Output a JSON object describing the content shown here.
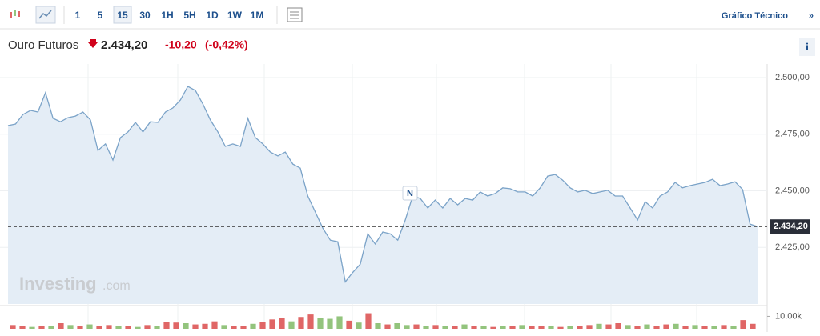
{
  "toolbar": {
    "intervals": [
      "1",
      "5",
      "15",
      "30",
      "1H",
      "5H",
      "1D",
      "1W",
      "1M"
    ],
    "link": "Gráfico Técnico",
    "link_arrow": "»"
  },
  "header": {
    "name": "Ouro Futuros",
    "price": "2.434,20",
    "change": "-10,20",
    "change_pct": "(-0,42%)",
    "info": "i"
  },
  "chart_data": {
    "type": "area",
    "title": "Ouro Futuros",
    "values": [
      2478.8,
      2479.5,
      2483.7,
      2485.5,
      2484.8,
      2493.3,
      2482,
      2480.5,
      2482.3,
      2483,
      2484.8,
      2481.3,
      2467.8,
      2470.7,
      2463.6,
      2473.5,
      2476,
      2480.2,
      2476,
      2480.5,
      2480.2,
      2484.8,
      2486.6,
      2490.1,
      2496.1,
      2494.3,
      2488.3,
      2481.3,
      2476,
      2469.6,
      2470.7,
      2469.6,
      2482,
      2473.5,
      2470.7,
      2467.1,
      2465.4,
      2467.1,
      2461.8,
      2460,
      2447.7,
      2440.6,
      2433.5,
      2428.2,
      2427.5,
      2409.8,
      2414,
      2417.6,
      2431,
      2426.5,
      2431.8,
      2431,
      2428.2,
      2437.1,
      2447.7,
      2446.6,
      2442.4,
      2445.9,
      2442.4,
      2446.6,
      2443.8,
      2446.6,
      2445.9,
      2449.5,
      2447.7,
      2448.8,
      2451.3,
      2450.9,
      2449.5,
      2449.5,
      2447.7,
      2451.3,
      2456.5,
      2457.2,
      2454.7,
      2451.3,
      2449.5,
      2450.2,
      2448.8,
      2449.5,
      2450.2,
      2447.7,
      2447.7,
      2442.4,
      2437.1,
      2445.2,
      2442.4,
      2447.7,
      2449.5,
      2453.7,
      2451.3,
      2452.3,
      2453,
      2453.7,
      2455.1,
      2452.3,
      2453,
      2454,
      2450.6,
      2435.3,
      2434.2
    ],
    "color": "#7ba3c8",
    "fill": "#e4edf6",
    "ylim": [
      2400,
      2506
    ],
    "yticks": [
      {
        "value": 2425,
        "label": "2.425,00"
      },
      {
        "value": 2450,
        "label": "2.450,00"
      },
      {
        "value": 2475,
        "label": "2.475,00"
      },
      {
        "value": 2500,
        "label": "2.500,00"
      }
    ],
    "grid": true,
    "last": {
      "value": 2434.2,
      "label": "2.434,20"
    },
    "marker": "N",
    "watermark": {
      "brand": "Investing",
      "suffix": ".com"
    },
    "volume": {
      "ylim": [
        0,
        18000
      ],
      "yticks": [
        {
          "value": 10000,
          "label": "10.00k"
        }
      ],
      "values": [
        3000,
        2000,
        1500,
        2500,
        2000,
        4500,
        3000,
        2500,
        3500,
        2000,
        3000,
        2500,
        2000,
        1500,
        3000,
        2500,
        5500,
        5000,
        4500,
        3500,
        4000,
        6000,
        3000,
        2500,
        2000,
        4000,
        5500,
        7500,
        8500,
        6000,
        9500,
        11500,
        9000,
        8000,
        10000,
        6500,
        5000,
        12500,
        4500,
        3500,
        4500,
        3000,
        3500,
        2500,
        3000,
        2000,
        2500,
        3500,
        2000,
        2500,
        1500,
        2000,
        2500,
        3000,
        2000,
        2500,
        2000,
        1500,
        2000,
        2500,
        3000,
        4000,
        3500,
        4500,
        3000,
        2500,
        3500,
        2000,
        3500,
        4000,
        2500,
        3000,
        2500,
        2000,
        3000,
        2500,
        7000,
        4000
      ],
      "colors": [
        "#e06666",
        "#e06666",
        "#93c47d",
        "#e06666",
        "#93c47d",
        "#e06666",
        "#93c47d",
        "#e06666",
        "#93c47d",
        "#e06666",
        "#e06666",
        "#93c47d",
        "#e06666",
        "#93c47d",
        "#e06666",
        "#93c47d",
        "#e06666",
        "#e06666",
        "#93c47d",
        "#e06666",
        "#e06666",
        "#e06666",
        "#93c47d",
        "#e06666",
        "#e06666",
        "#93c47d",
        "#e06666",
        "#e06666",
        "#e06666",
        "#93c47d",
        "#e06666",
        "#e06666",
        "#93c47d",
        "#93c47d",
        "#93c47d",
        "#e06666",
        "#93c47d",
        "#e06666",
        "#93c47d",
        "#e06666",
        "#93c47d",
        "#93c47d",
        "#e06666",
        "#93c47d",
        "#e06666",
        "#93c47d",
        "#e06666",
        "#93c47d",
        "#e06666",
        "#93c47d",
        "#e06666",
        "#93c47d",
        "#e06666",
        "#93c47d",
        "#e06666",
        "#e06666",
        "#93c47d",
        "#e06666",
        "#93c47d",
        "#e06666",
        "#e06666",
        "#93c47d",
        "#e06666",
        "#e06666",
        "#93c47d",
        "#e06666",
        "#93c47d",
        "#e06666",
        "#e06666",
        "#93c47d",
        "#e06666",
        "#93c47d",
        "#e06666",
        "#93c47d",
        "#e06666",
        "#93c47d",
        "#e06666",
        "#e06666"
      ]
    }
  }
}
